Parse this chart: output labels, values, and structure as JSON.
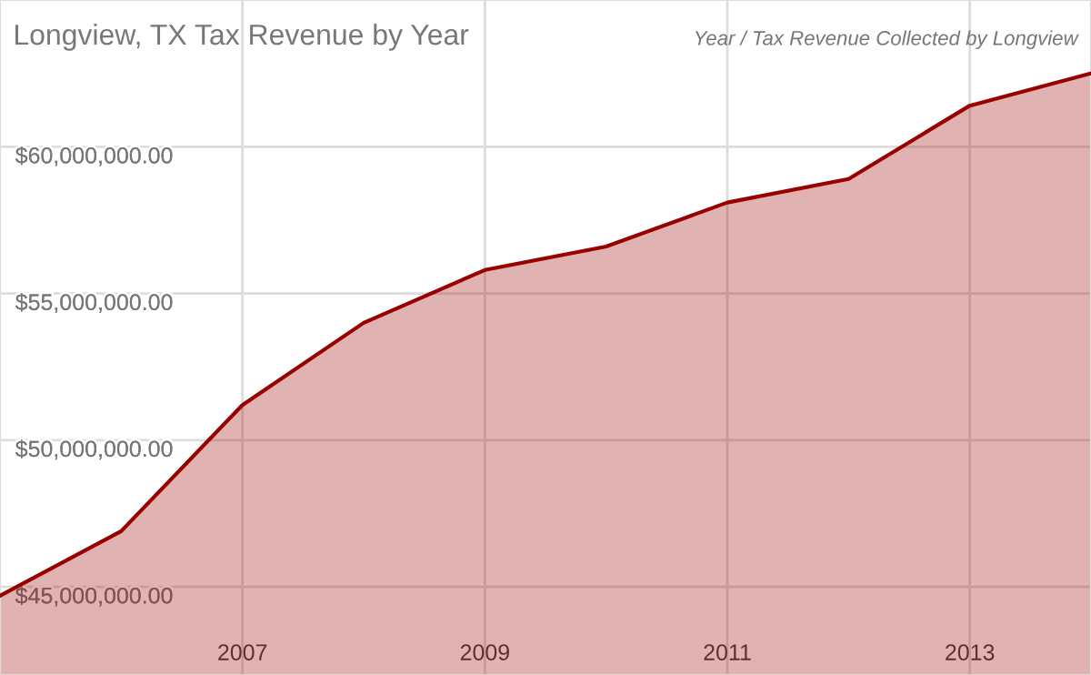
{
  "chart_data": {
    "type": "area",
    "title": "Longview, TX Tax Revenue by Year",
    "subtitle": "Year / Tax Revenue Collected by Longview",
    "x": [
      2005,
      2006,
      2007,
      2008,
      2009,
      2010,
      2011,
      2012,
      2013,
      2014
    ],
    "series": [
      {
        "color": "#990000",
        "values": [
          44700000,
          46900000,
          51200000,
          54000000,
          55800000,
          56600000,
          58100000,
          58900000,
          61400000,
          62500000
        ]
      }
    ],
    "xlim": [
      2005,
      2014
    ],
    "ylim": [
      42000000,
      65000000
    ],
    "xticks": [
      2007,
      2009,
      2011,
      2013
    ],
    "yticks": [
      {
        "value": 45000000,
        "label": "$45,000,000.00"
      },
      {
        "value": 50000000,
        "label": "$50,000,000.00"
      },
      {
        "value": 55000000,
        "label": "$55,000,000.00"
      },
      {
        "value": 60000000,
        "label": "$60,000,000.00"
      }
    ],
    "grid": true,
    "marker": "none",
    "line_style": "solid"
  }
}
